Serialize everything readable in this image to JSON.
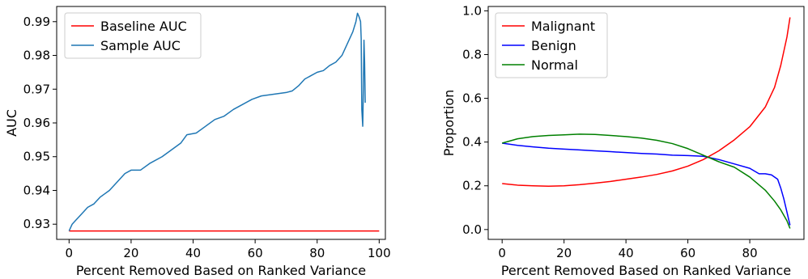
{
  "chart_data": [
    {
      "type": "line",
      "xlabel": "Percent Removed Based on Ranked Variance",
      "ylabel": "AUC",
      "xlim": [
        -4,
        102
      ],
      "ylim": [
        0.9255,
        0.9945
      ],
      "xticks": [
        0,
        20,
        40,
        60,
        80,
        100
      ],
      "yticks": [
        0.93,
        0.94,
        0.95,
        0.96,
        0.97,
        0.98,
        0.99
      ],
      "ytick_labels": [
        "0.93",
        "0.94",
        "0.95",
        "0.96",
        "0.97",
        "0.98",
        "0.99"
      ],
      "grid": false,
      "legend_position": "top-left",
      "series": [
        {
          "name": "Baseline AUC",
          "color": "#ff0000",
          "points": [
            [
              0,
              0.928
            ],
            [
              100,
              0.928
            ]
          ]
        },
        {
          "name": "Sample AUC",
          "color": "#1f77b4",
          "points": [
            [
              0,
              0.928
            ],
            [
              1,
              0.93
            ],
            [
              2,
              0.931
            ],
            [
              4,
              0.933
            ],
            [
              6,
              0.935
            ],
            [
              8,
              0.936
            ],
            [
              10,
              0.938
            ],
            [
              13,
              0.94
            ],
            [
              16,
              0.943
            ],
            [
              18,
              0.945
            ],
            [
              20,
              0.946
            ],
            [
              23,
              0.946
            ],
            [
              26,
              0.948
            ],
            [
              30,
              0.95
            ],
            [
              33,
              0.952
            ],
            [
              36,
              0.954
            ],
            [
              38,
              0.9565
            ],
            [
              41,
              0.957
            ],
            [
              44,
              0.959
            ],
            [
              47,
              0.961
            ],
            [
              50,
              0.962
            ],
            [
              53,
              0.964
            ],
            [
              56,
              0.9655
            ],
            [
              59,
              0.967
            ],
            [
              62,
              0.968
            ],
            [
              66,
              0.9685
            ],
            [
              70,
              0.969
            ],
            [
              72,
              0.9695
            ],
            [
              74,
              0.971
            ],
            [
              76,
              0.973
            ],
            [
              78,
              0.974
            ],
            [
              80,
              0.975
            ],
            [
              82,
              0.9755
            ],
            [
              84,
              0.977
            ],
            [
              86,
              0.978
            ],
            [
              88,
              0.98
            ],
            [
              90,
              0.984
            ],
            [
              91.5,
              0.987
            ],
            [
              92.5,
              0.99
            ],
            [
              93,
              0.9925
            ],
            [
              93.5,
              0.9915
            ],
            [
              94,
              0.99
            ],
            [
              94.2,
              0.985
            ],
            [
              94.4,
              0.964
            ],
            [
              94.7,
              0.959
            ],
            [
              94.9,
              0.97
            ],
            [
              95.1,
              0.9845
            ],
            [
              95.3,
              0.978
            ],
            [
              95.5,
              0.966
            ]
          ]
        }
      ]
    },
    {
      "type": "line",
      "xlabel": "Percent Removed Based on Ranked Variance",
      "ylabel": "Proportion",
      "xlim": [
        -4.5,
        97.5
      ],
      "ylim": [
        -0.045,
        1.02
      ],
      "xticks": [
        0,
        20,
        40,
        60,
        80
      ],
      "yticks": [
        0.0,
        0.2,
        0.4,
        0.6,
        0.8,
        1.0
      ],
      "ytick_labels": [
        "0.0",
        "0.2",
        "0.4",
        "0.6",
        "0.8",
        "1.0"
      ],
      "grid": false,
      "legend_position": "top-left",
      "series": [
        {
          "name": "Malignant",
          "color": "#ff0000",
          "points": [
            [
              0,
              0.21
            ],
            [
              5,
              0.203
            ],
            [
              10,
              0.2
            ],
            [
              15,
              0.198
            ],
            [
              20,
              0.2
            ],
            [
              25,
              0.205
            ],
            [
              30,
              0.212
            ],
            [
              35,
              0.22
            ],
            [
              40,
              0.23
            ],
            [
              45,
              0.24
            ],
            [
              50,
              0.252
            ],
            [
              55,
              0.268
            ],
            [
              60,
              0.29
            ],
            [
              65,
              0.32
            ],
            [
              70,
              0.36
            ],
            [
              75,
              0.41
            ],
            [
              80,
              0.47
            ],
            [
              85,
              0.56
            ],
            [
              88,
              0.65
            ],
            [
              90,
              0.75
            ],
            [
              92,
              0.88
            ],
            [
              93,
              0.97
            ]
          ]
        },
        {
          "name": "Benign",
          "color": "#0000ff",
          "points": [
            [
              0,
              0.395
            ],
            [
              5,
              0.385
            ],
            [
              10,
              0.378
            ],
            [
              15,
              0.372
            ],
            [
              20,
              0.368
            ],
            [
              25,
              0.364
            ],
            [
              30,
              0.36
            ],
            [
              35,
              0.356
            ],
            [
              40,
              0.352
            ],
            [
              45,
              0.348
            ],
            [
              50,
              0.345
            ],
            [
              55,
              0.34
            ],
            [
              60,
              0.338
            ],
            [
              65,
              0.335
            ],
            [
              70,
              0.32
            ],
            [
              75,
              0.3
            ],
            [
              80,
              0.28
            ],
            [
              83,
              0.255
            ],
            [
              85,
              0.255
            ],
            [
              87,
              0.25
            ],
            [
              89,
              0.23
            ],
            [
              90,
              0.19
            ],
            [
              91,
              0.14
            ],
            [
              92,
              0.08
            ],
            [
              93,
              0.02
            ]
          ]
        },
        {
          "name": "Normal",
          "color": "#008000",
          "points": [
            [
              0,
              0.395
            ],
            [
              5,
              0.415
            ],
            [
              10,
              0.425
            ],
            [
              15,
              0.43
            ],
            [
              20,
              0.433
            ],
            [
              25,
              0.436
            ],
            [
              30,
              0.435
            ],
            [
              35,
              0.43
            ],
            [
              40,
              0.425
            ],
            [
              45,
              0.418
            ],
            [
              50,
              0.408
            ],
            [
              55,
              0.393
            ],
            [
              60,
              0.37
            ],
            [
              65,
              0.34
            ],
            [
              70,
              0.31
            ],
            [
              75,
              0.285
            ],
            [
              80,
              0.24
            ],
            [
              85,
              0.18
            ],
            [
              88,
              0.13
            ],
            [
              90,
              0.09
            ],
            [
              92,
              0.04
            ],
            [
              93,
              0.005
            ]
          ]
        }
      ]
    }
  ]
}
